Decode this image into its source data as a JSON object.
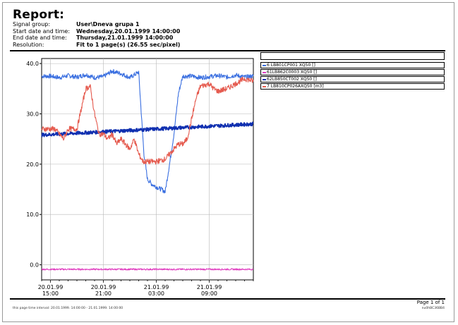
{
  "report": {
    "title": "Report:",
    "fields": [
      {
        "key": "Signal group:",
        "value": "User\\Dneva grupa 1"
      },
      {
        "key": "Start date and time:",
        "value": "Wednesday,20.01.1999 14:00:00"
      },
      {
        "key": "End date and time:",
        "value": "Thursday,21.01.1999 14:00:00"
      },
      {
        "key": "Resolution:",
        "value": "Fit to 1 page(s) (26.55 sec/pixel)"
      }
    ]
  },
  "legend": [
    {
      "label": "6 LB801CP001 XQ50 []",
      "color": "#3a6fe0"
    },
    {
      "label": "61LB862C0003 XQ50 []",
      "color": "#e040c0"
    },
    {
      "label": "62LB850CT002 XQ50 []",
      "color": "#1030b0"
    },
    {
      "label": "7 LB810CP026AXQ50 [m3]",
      "color": "#e55a4e"
    }
  ],
  "footer": {
    "page": "Page 1 of 1",
    "interval": "this page time interval:   20.01.1999. 14:00:00 - 21.01.1999. 14:00:00",
    "code": "nu0hBC36BB4"
  },
  "chart_data": {
    "type": "line",
    "ylim": [
      -3,
      41
    ],
    "yticks": [
      "40.0",
      "30.0",
      "20.0",
      "10.0",
      "0.0"
    ],
    "yticks_values": [
      40,
      30,
      20,
      10,
      0
    ],
    "xticks": [
      {
        "date": "20.01.99",
        "time": "15:00",
        "hour": 1
      },
      {
        "date": "20.01.99",
        "time": "21:00",
        "hour": 7
      },
      {
        "date": "21.01.99",
        "time": "03:00",
        "hour": 13
      },
      {
        "date": "21.01.99",
        "time": "09:00",
        "hour": 19
      }
    ],
    "x_range_hours": [
      0,
      24
    ],
    "grid": true,
    "series": [
      {
        "name": "6 LB801CP001 XQ50 []",
        "color": "#3a6fe0",
        "x": [
          0,
          1,
          2,
          3,
          4,
          5,
          6,
          7,
          8,
          9,
          10,
          11,
          11.3,
          11.6,
          12,
          12.5,
          13,
          13.3,
          13.6,
          14,
          14.5,
          15,
          15.5,
          16,
          17,
          18,
          19,
          20,
          21,
          22,
          23,
          24
        ],
        "y": [
          37.5,
          37.5,
          37.2,
          37.6,
          37.3,
          37.8,
          37.2,
          37.4,
          38.5,
          38.0,
          37.2,
          38.3,
          30,
          22,
          17,
          16,
          15.5,
          15.2,
          15,
          14.5,
          20,
          26,
          34,
          37.5,
          37.5,
          37.2,
          37.4,
          37.6,
          37.3,
          37.7,
          37.3,
          37.5
        ]
      },
      {
        "name": "61LB862C0003 XQ50 []",
        "color": "#e040c0",
        "x": [
          0,
          24
        ],
        "y": [
          -0.9,
          -0.9
        ]
      },
      {
        "name": "62LB850CT002 XQ50 []",
        "color": "#1030b0",
        "x": [
          0,
          24
        ],
        "y": [
          25.8,
          28.0
        ]
      },
      {
        "name": "7 LB810CP026AXQ50 [m3]",
        "color": "#e55a4e",
        "x": [
          0,
          1.5,
          2,
          2.5,
          3,
          4,
          4.5,
          5,
          5.5,
          6,
          6.5,
          7,
          7.5,
          8,
          8.5,
          9,
          9.5,
          10,
          10.5,
          11,
          11.5,
          12,
          12.5,
          13,
          14,
          14.5,
          15,
          15.5,
          16,
          16.5,
          17,
          17.5,
          18,
          19,
          19.5,
          20,
          21,
          22,
          23,
          24
        ],
        "y": [
          27,
          27,
          26,
          25,
          27,
          27,
          31,
          35,
          35.5,
          30,
          26,
          26,
          25,
          26,
          24,
          25,
          24,
          23,
          25,
          22,
          20.5,
          20.5,
          20.5,
          20.5,
          21,
          22,
          23,
          24,
          24,
          25,
          29,
          33,
          35.5,
          36,
          35,
          34.5,
          35,
          36,
          37,
          36.5
        ]
      }
    ]
  }
}
